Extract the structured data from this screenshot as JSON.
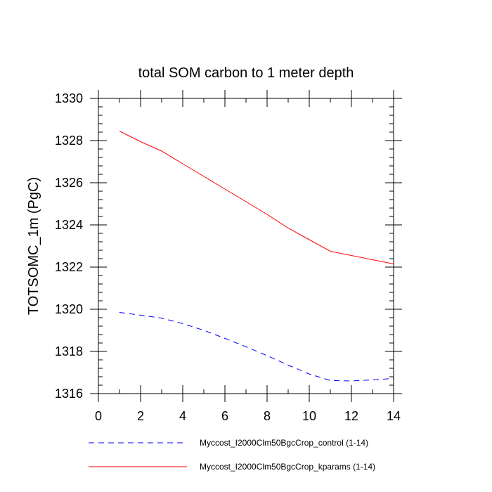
{
  "chart_data": {
    "type": "line",
    "title": "total SOM carbon to 1 meter depth",
    "xlabel": "",
    "ylabel": "TOTSOMC_1m  (PgC)",
    "xlim": [
      0,
      14
    ],
    "ylim": [
      1316,
      1330
    ],
    "xticks": [
      0,
      2,
      4,
      6,
      8,
      10,
      12,
      14
    ],
    "yticks": [
      1316,
      1318,
      1320,
      1322,
      1324,
      1326,
      1328,
      1330
    ],
    "grid": false,
    "legend_position": "bottom",
    "series": [
      {
        "name": "Myccost_I2000Clm50BgcCrop_control (1-14)",
        "color": "#0000ff",
        "dash": "dashed",
        "x": [
          1,
          2,
          3,
          4,
          5,
          6,
          7,
          8,
          9,
          10,
          11,
          12,
          13,
          14
        ],
        "y": [
          1319.85,
          1319.72,
          1319.58,
          1319.32,
          1319.0,
          1318.62,
          1318.22,
          1317.8,
          1317.35,
          1316.93,
          1316.62,
          1316.6,
          1316.65,
          1316.72
        ]
      },
      {
        "name": "Myccost_I2000Clm50BgcCrop_kparams (1-14)",
        "color": "#ff0000",
        "dash": "solid",
        "x": [
          1,
          2,
          3,
          4,
          5,
          6,
          7,
          8,
          9,
          10,
          11,
          12,
          13,
          14
        ],
        "y": [
          1328.45,
          1327.95,
          1327.5,
          1326.9,
          1326.3,
          1325.7,
          1325.1,
          1324.5,
          1323.85,
          1323.3,
          1322.75,
          1322.55,
          1322.35,
          1322.15
        ]
      }
    ]
  }
}
